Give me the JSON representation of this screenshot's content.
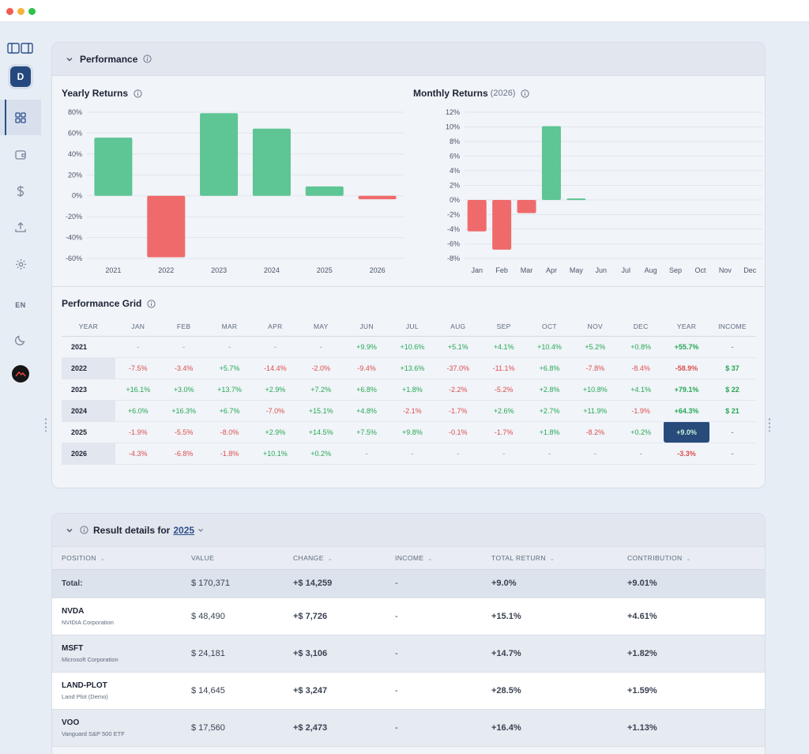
{
  "colors": {
    "positive": "#5ec594",
    "negative": "#ef6b6b",
    "accent": "#284b7c"
  },
  "sidebar": {
    "avatar_letter": "D",
    "language": "EN",
    "icons": [
      "panel-icon",
      "dashboard-icon",
      "wallet-icon",
      "dollar-icon",
      "upload-icon",
      "gear-icon",
      "moon-icon",
      "brand-logo"
    ]
  },
  "performance": {
    "title": "Performance",
    "yearly": {
      "title": "Yearly Returns",
      "chart_data": {
        "type": "bar",
        "categories": [
          "2021",
          "2022",
          "2023",
          "2024",
          "2025",
          "2026"
        ],
        "values": [
          55.7,
          -58.9,
          79.1,
          64.3,
          9.0,
          -3.3
        ],
        "ylim": [
          -60,
          80
        ],
        "yticks": [
          "80%",
          "60%",
          "40%",
          "20%",
          "0%",
          "-20%",
          "-40%",
          "-60%"
        ],
        "grid": true
      }
    },
    "monthly": {
      "title": "Monthly Returns",
      "subtitle": "(2026)",
      "chart_data": {
        "type": "bar",
        "categories": [
          "Jan",
          "Feb",
          "Mar",
          "Apr",
          "May",
          "Jun",
          "Jul",
          "Aug",
          "Sep",
          "Oct",
          "Nov",
          "Dec"
        ],
        "values": [
          -4.3,
          -6.8,
          -1.8,
          10.1,
          0.2,
          null,
          null,
          null,
          null,
          null,
          null,
          null
        ],
        "ylim": [
          -8,
          12
        ],
        "yticks": [
          "12%",
          "10%",
          "8%",
          "6%",
          "4%",
          "2%",
          "0%",
          "-2%",
          "-4%",
          "-6%",
          "-8%"
        ],
        "grid": true
      }
    },
    "grid": {
      "title": "Performance Grid",
      "headers": [
        "YEAR",
        "JAN",
        "FEB",
        "MAR",
        "APR",
        "MAY",
        "JUN",
        "JUL",
        "AUG",
        "SEP",
        "OCT",
        "NOV",
        "DEC",
        "YEAR",
        "INCOME"
      ],
      "rows": [
        {
          "year": "2021",
          "cells": [
            "-",
            "-",
            "-",
            "-",
            "-",
            "+9.9%",
            "+10.6%",
            "+5.1%",
            "+4.1%",
            "+10.4%",
            "+5.2%",
            "+0.8%",
            "+55.7%",
            "-"
          ]
        },
        {
          "year": "2022",
          "cells": [
            "-7.5%",
            "-3.4%",
            "+5.7%",
            "-14.4%",
            "-2.0%",
            "-9.4%",
            "+13.6%",
            "-37.0%",
            "-11.1%",
            "+6.8%",
            "-7.8%",
            "-8.4%",
            "-58.9%",
            "$ 37"
          ]
        },
        {
          "year": "2023",
          "cells": [
            "+16.1%",
            "+3.0%",
            "+13.7%",
            "+2.9%",
            "+7.2%",
            "+6.8%",
            "+1.8%",
            "-2.2%",
            "-5.2%",
            "+2.8%",
            "+10.8%",
            "+4.1%",
            "+79.1%",
            "$ 22"
          ]
        },
        {
          "year": "2024",
          "cells": [
            "+6.0%",
            "+16.3%",
            "+6.7%",
            "-7.0%",
            "+15.1%",
            "+4.8%",
            "-2.1%",
            "-1.7%",
            "+2.6%",
            "+2.7%",
            "+11.9%",
            "-1.9%",
            "+64.3%",
            "$ 21"
          ]
        },
        {
          "year": "2025",
          "cells": [
            "-1.9%",
            "-5.5%",
            "-8.0%",
            "+2.9%",
            "+14.5%",
            "+7.5%",
            "+9.8%",
            "-0.1%",
            "-1.7%",
            "+1.8%",
            "-8.2%",
            "+0.2%",
            "+9.0%",
            "-"
          ]
        },
        {
          "year": "2026",
          "cells": [
            "-4.3%",
            "-6.8%",
            "-1.8%",
            "+10.1%",
            "+0.2%",
            "-",
            "-",
            "-",
            "-",
            "-",
            "-",
            "-",
            "-3.3%",
            "-"
          ]
        }
      ]
    }
  },
  "results": {
    "title": "Result details for",
    "year": "2025",
    "headers": [
      "POSITION",
      "VALUE",
      "CHANGE",
      "INCOME",
      "TOTAL RETURN",
      "CONTRIBUTION"
    ],
    "total": {
      "label": "Total:",
      "value": "$ 170,371",
      "change": "+$ 14,259",
      "income": "-",
      "total_return": "+9.0%",
      "contribution": "+9.01%"
    },
    "rows": [
      {
        "symbol": "NVDA",
        "name": "NVIDIA Corporation",
        "value": "$ 48,490",
        "change": "+$ 7,726",
        "income": "-",
        "total_return": "+15.1%",
        "contribution": "+4.61%"
      },
      {
        "symbol": "MSFT",
        "name": "Microsoft Corporation",
        "value": "$ 24,181",
        "change": "+$ 3,106",
        "income": "-",
        "total_return": "+14.7%",
        "contribution": "+1.82%"
      },
      {
        "symbol": "LAND-PLOT",
        "name": "Land Plot (Demo)",
        "value": "$ 14,645",
        "change": "+$ 3,247",
        "income": "-",
        "total_return": "+28.5%",
        "contribution": "+1.59%"
      },
      {
        "symbol": "VOO",
        "name": "Vanguard S&P 500 ETF",
        "value": "$ 17,560",
        "change": "+$ 2,473",
        "income": "-",
        "total_return": "+16.4%",
        "contribution": "+1.13%"
      }
    ]
  }
}
